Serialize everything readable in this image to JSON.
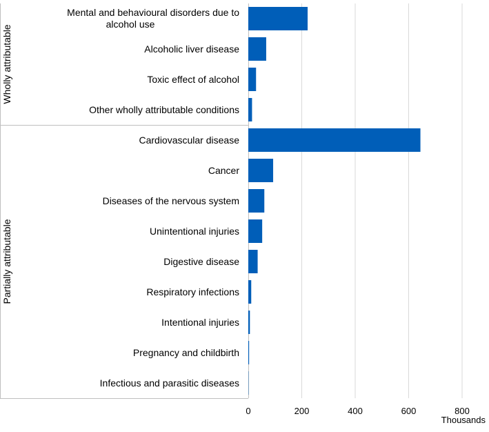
{
  "chart_data": {
    "type": "bar",
    "orientation": "horizontal",
    "groups": [
      {
        "name": "Wholly attributable",
        "categories": [
          "Mental and behavioural disorders due to alcohol use",
          "Alcoholic liver disease",
          "Toxic effect of alcohol",
          "Other wholly attributable conditions"
        ],
        "values": [
          222,
          67,
          29,
          14
        ]
      },
      {
        "name": "Partially attributable",
        "categories": [
          "Cardiovascular disease",
          "Cancer",
          "Diseases of the nervous system",
          "Unintentional injuries",
          "Digestive disease",
          "Respiratory infections",
          "Intentional injuries",
          "Pregnancy and childbirth",
          "Infectious and parasitic diseases"
        ],
        "values": [
          644,
          93,
          60,
          52,
          35,
          11,
          6,
          3,
          1
        ]
      }
    ],
    "xlabel": "Thousands",
    "xlim": [
      0,
      800
    ],
    "xticks": [
      0,
      200,
      400,
      600,
      800
    ],
    "grid": "vertical",
    "legend": "none",
    "colors": {
      "bar": "#005EB8",
      "grid": "#D9D9D9",
      "divider": "#BFBFBF"
    }
  }
}
